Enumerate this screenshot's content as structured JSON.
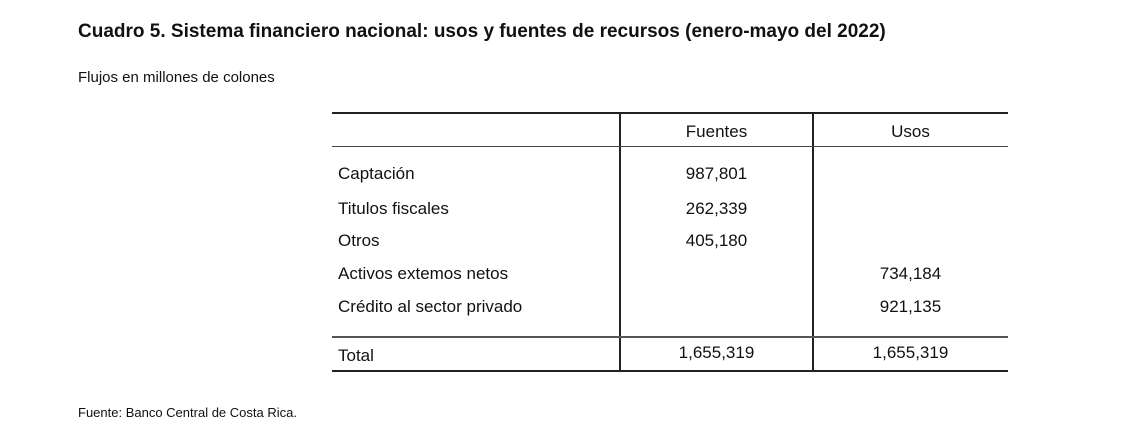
{
  "title": "Cuadro 5. Sistema financiero nacional: usos y fuentes de recursos (enero-mayo del 2022)",
  "subtitle": "Flujos en millones de colones",
  "table": {
    "headers": [
      "",
      "Fuentes",
      "Usos"
    ],
    "rows": [
      [
        "Captación",
        "987,801",
        ""
      ],
      [
        "Titulos fiscales",
        "262,339",
        ""
      ],
      [
        "Otros",
        "405,180",
        ""
      ],
      [
        "Activos extemos netos",
        "",
        "734,184"
      ],
      [
        "Crédito al sector privado",
        "",
        "921,135"
      ]
    ],
    "total": [
      "Total",
      "1,655,319",
      "1,655,319"
    ]
  },
  "source": "Fuente: Banco Central de Costa Rica."
}
